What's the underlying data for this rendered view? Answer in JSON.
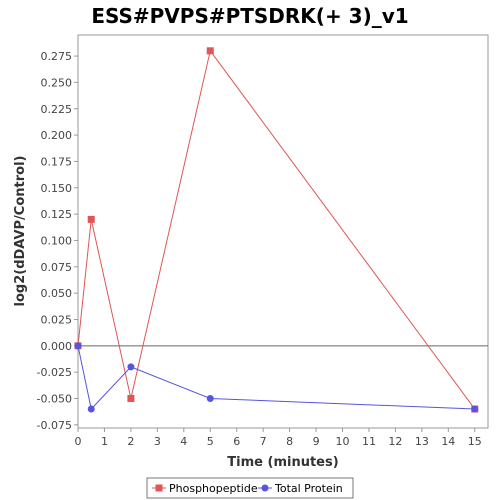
{
  "chart_data": {
    "type": "line",
    "title": "ESS#PVPS#PTSDRK(+ 3)_v1",
    "xlabel": "Time (minutes)",
    "ylabel": "log2(dDAVP/Control)",
    "xlim": [
      0,
      15.5
    ],
    "ylim": [
      -0.078,
      0.295
    ],
    "x_ticks": [
      0,
      1,
      2,
      3,
      4,
      5,
      6,
      7,
      8,
      9,
      10,
      11,
      12,
      13,
      14,
      15
    ],
    "y_ticks": [
      -0.075,
      -0.05,
      -0.025,
      0.0,
      0.025,
      0.05,
      0.075,
      0.1,
      0.125,
      0.15,
      0.175,
      0.2,
      0.225,
      0.25,
      0.275
    ],
    "x_tick_labels": [
      "0",
      "1",
      "2",
      "3",
      "4",
      "5",
      "6",
      "7",
      "8",
      "9",
      "10",
      "11",
      "12",
      "13",
      "14",
      "15"
    ],
    "y_tick_labels": [
      "-0.075",
      "-0.050",
      "-0.025",
      "0.000",
      "0.025",
      "0.050",
      "0.075",
      "0.100",
      "0.125",
      "0.150",
      "0.175",
      "0.200",
      "0.225",
      "0.250",
      "0.275"
    ],
    "zero_line": true,
    "grid": false,
    "legend_position": "bottom",
    "series": [
      {
        "name": "Phosphopeptide",
        "color": "#e05555",
        "marker": "square",
        "x": [
          0,
          0.5,
          2,
          5,
          15
        ],
        "y": [
          0.0,
          0.12,
          -0.05,
          0.28,
          -0.06
        ]
      },
      {
        "name": "Total Protein",
        "color": "#5555e0",
        "marker": "circle",
        "x": [
          0,
          0.5,
          2,
          5,
          15
        ],
        "y": [
          0.0,
          -0.06,
          -0.02,
          -0.05,
          -0.06
        ]
      }
    ]
  }
}
